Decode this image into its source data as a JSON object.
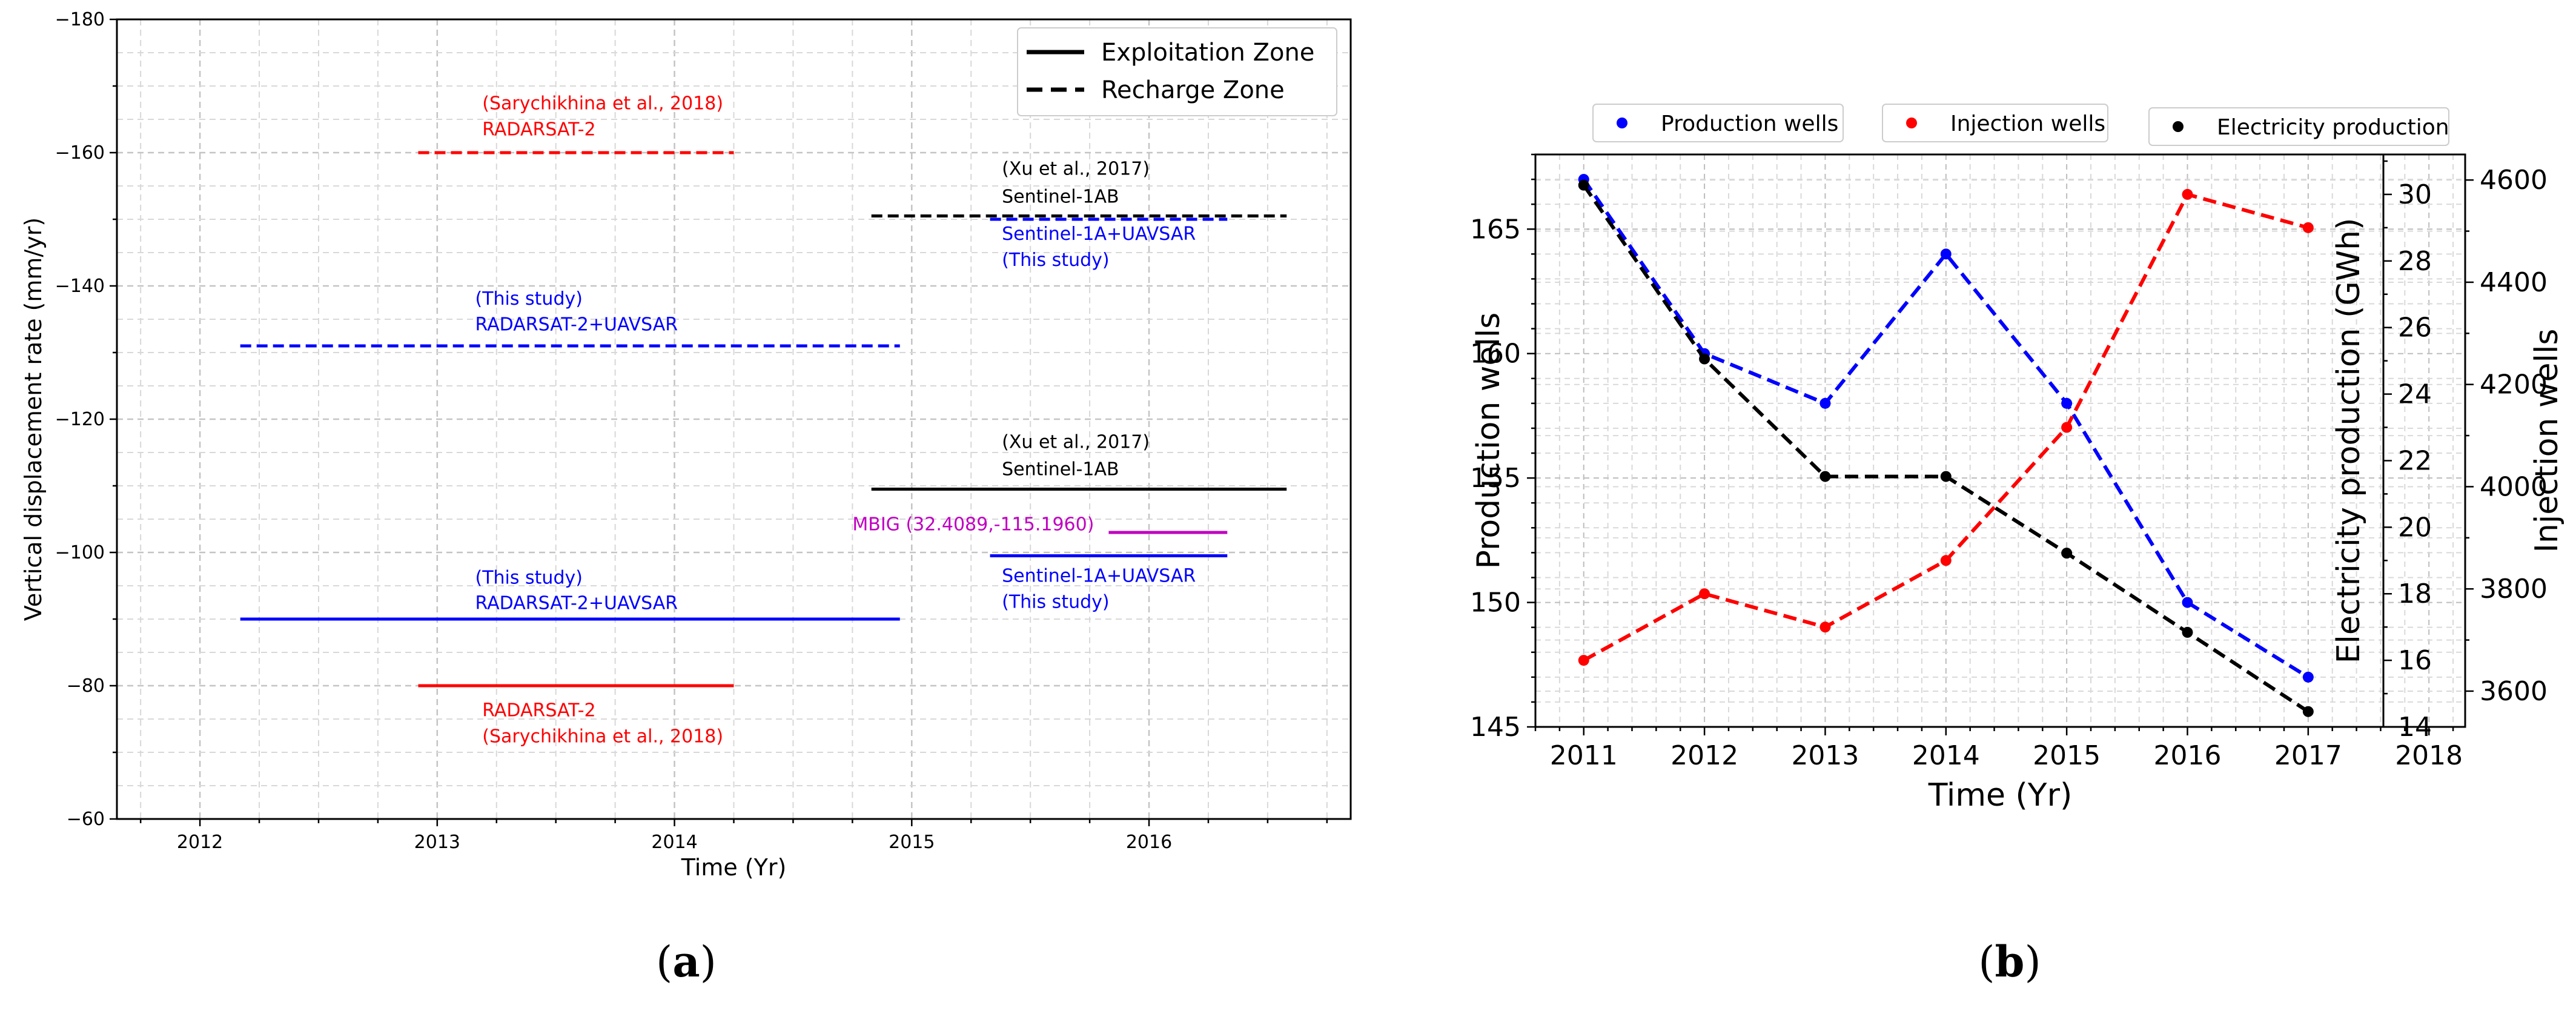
{
  "chart_data": [
    {
      "id": "a",
      "type": "line",
      "panel_label": "a",
      "xlabel": "Time (Yr)",
      "ylabel": "Vertical displacement rate (mm/yr)",
      "xlim": [
        2011.65,
        2016.85
      ],
      "ylim": [
        -180,
        -60
      ],
      "y_inverted": true,
      "x_ticks": [
        2012,
        2013,
        2014,
        2015,
        2016
      ],
      "y_ticks": [
        -180,
        -160,
        -140,
        -120,
        -100,
        -80,
        -60
      ],
      "grid": true,
      "legend_position": "top-right",
      "legend": [
        {
          "label": "Exploitation Zone",
          "style": "solid",
          "color": "#000000"
        },
        {
          "label": "Recharge Zone",
          "style": "dashed",
          "color": "#000000"
        }
      ],
      "segments": [
        {
          "name": "radarsat2-recharge",
          "x0": 2012.92,
          "x1": 2014.25,
          "y": -160,
          "color": "#ff0000",
          "style": "dashed"
        },
        {
          "name": "radarsat2-uavsar-recharge",
          "x0": 2012.17,
          "x1": 2014.95,
          "y": -131,
          "color": "#0000ff",
          "style": "dashed"
        },
        {
          "name": "sentinel1ab-recharge",
          "x0": 2014.83,
          "x1": 2016.58,
          "y": -150.5,
          "color": "#000000",
          "style": "dashed"
        },
        {
          "name": "sentinel1a-uavsar-recharge",
          "x0": 2015.33,
          "x1": 2016.33,
          "y": -150,
          "color": "#0000ff",
          "style": "dashed"
        },
        {
          "name": "sentinel1ab-exploitation",
          "x0": 2014.83,
          "x1": 2016.58,
          "y": -109.5,
          "color": "#000000",
          "style": "solid"
        },
        {
          "name": "mbig-exploitation",
          "x0": 2015.83,
          "x1": 2016.33,
          "y": -103,
          "color": "#c000c0",
          "style": "solid"
        },
        {
          "name": "sentinel1a-uavsar-exploitation",
          "x0": 2015.33,
          "x1": 2016.33,
          "y": -99.5,
          "color": "#0000ff",
          "style": "solid"
        },
        {
          "name": "radarsat2-uavsar-exploitation",
          "x0": 2012.17,
          "x1": 2014.95,
          "y": -90,
          "color": "#0000ff",
          "style": "solid"
        },
        {
          "name": "radarsat2-exploitation",
          "x0": 2012.92,
          "x1": 2014.25,
          "y": -80,
          "color": "#ff0000",
          "style": "solid"
        }
      ],
      "annotations": [
        {
          "text": "(Sarychikhina et al., 2018)",
          "x": 2013.19,
          "y": -166.5,
          "color": "#ff0000"
        },
        {
          "text": "RADARSAT-2",
          "x": 2013.19,
          "y": -162.6,
          "color": "#ff0000"
        },
        {
          "text": "(Xu et al., 2017)",
          "x": 2015.38,
          "y": -156.7,
          "color": "#000000"
        },
        {
          "text": "Sentinel-1AB",
          "x": 2015.38,
          "y": -152.5,
          "color": "#000000"
        },
        {
          "text": "Sentinel-1A+UAVSAR",
          "x": 2015.38,
          "y": -146.9,
          "color": "#0000ff"
        },
        {
          "text": "(This study)",
          "x": 2015.38,
          "y": -143,
          "color": "#0000ff"
        },
        {
          "text": "(This study)",
          "x": 2013.16,
          "y": -137.2,
          "color": "#0000ff"
        },
        {
          "text": "RADARSAT-2+UAVSAR",
          "x": 2013.16,
          "y": -133.3,
          "color": "#0000ff"
        },
        {
          "text": "(Xu et al., 2017)",
          "x": 2015.38,
          "y": -115.7,
          "color": "#000000"
        },
        {
          "text": "Sentinel-1AB",
          "x": 2015.38,
          "y": -111.6,
          "color": "#000000"
        },
        {
          "text": "MBIG (32.4089,-115.1960)",
          "x": 2014.75,
          "y": -103.3,
          "color": "#c000c0"
        },
        {
          "text": "Sentinel-1A+UAVSAR",
          "x": 2015.38,
          "y": -95.6,
          "color": "#0000ff"
        },
        {
          "text": "(This study)",
          "x": 2015.38,
          "y": -91.7,
          "color": "#0000ff"
        },
        {
          "text": "(This study)",
          "x": 2013.16,
          "y": -95.3,
          "color": "#0000ff"
        },
        {
          "text": "RADARSAT-2+UAVSAR",
          "x": 2013.16,
          "y": -91.5,
          "color": "#0000ff"
        },
        {
          "text": "RADARSAT-2",
          "x": 2013.19,
          "y": -75.4,
          "color": "#ff0000"
        },
        {
          "text": "(Sarychikhina et al., 2018)",
          "x": 2013.19,
          "y": -71.5,
          "color": "#ff0000"
        }
      ]
    },
    {
      "id": "b",
      "type": "line",
      "panel_label": "b",
      "xlabel": "Time (Yr)",
      "ylabel_left": "Production wells",
      "ylabel_right_inner": "Electricity production (GWh)",
      "ylabel_right_outer": "Injection wells",
      "xlim": [
        2010.6,
        2018.3
      ],
      "x_ticks": [
        2011,
        2012,
        2013,
        2014,
        2015,
        2016,
        2017,
        2018
      ],
      "ylim_left": [
        145,
        168
      ],
      "y_ticks_left": [
        145,
        150,
        155,
        160,
        165
      ],
      "ylim_right_inner": [
        3530,
        4650
      ],
      "y_ticks_right_inner": [
        3600,
        3800,
        4000,
        4200,
        4400,
        4600
      ],
      "ylim_right_outer": [
        14,
        31.2
      ],
      "y_ticks_right_outer": [
        14,
        16,
        18,
        20,
        22,
        24,
        26,
        28,
        30
      ],
      "grid": true,
      "legend_position": "top",
      "x": [
        2011,
        2012,
        2013,
        2014,
        2015,
        2016,
        2017
      ],
      "series": [
        {
          "name": "Production wells",
          "axis": "left",
          "color": "#0000ff",
          "values": [
            167,
            160,
            158,
            164,
            158,
            150,
            147
          ]
        },
        {
          "name": "Injection wells",
          "axis": "right_outer",
          "color": "#ff0000",
          "values": [
            16,
            18,
            17,
            19,
            23,
            30,
            29
          ]
        },
        {
          "name": "Electricity production",
          "axis": "right_inner",
          "color": "#000000",
          "values": [
            4590,
            4250,
            4020,
            4020,
            3870,
            3715,
            3560
          ]
        }
      ]
    }
  ]
}
